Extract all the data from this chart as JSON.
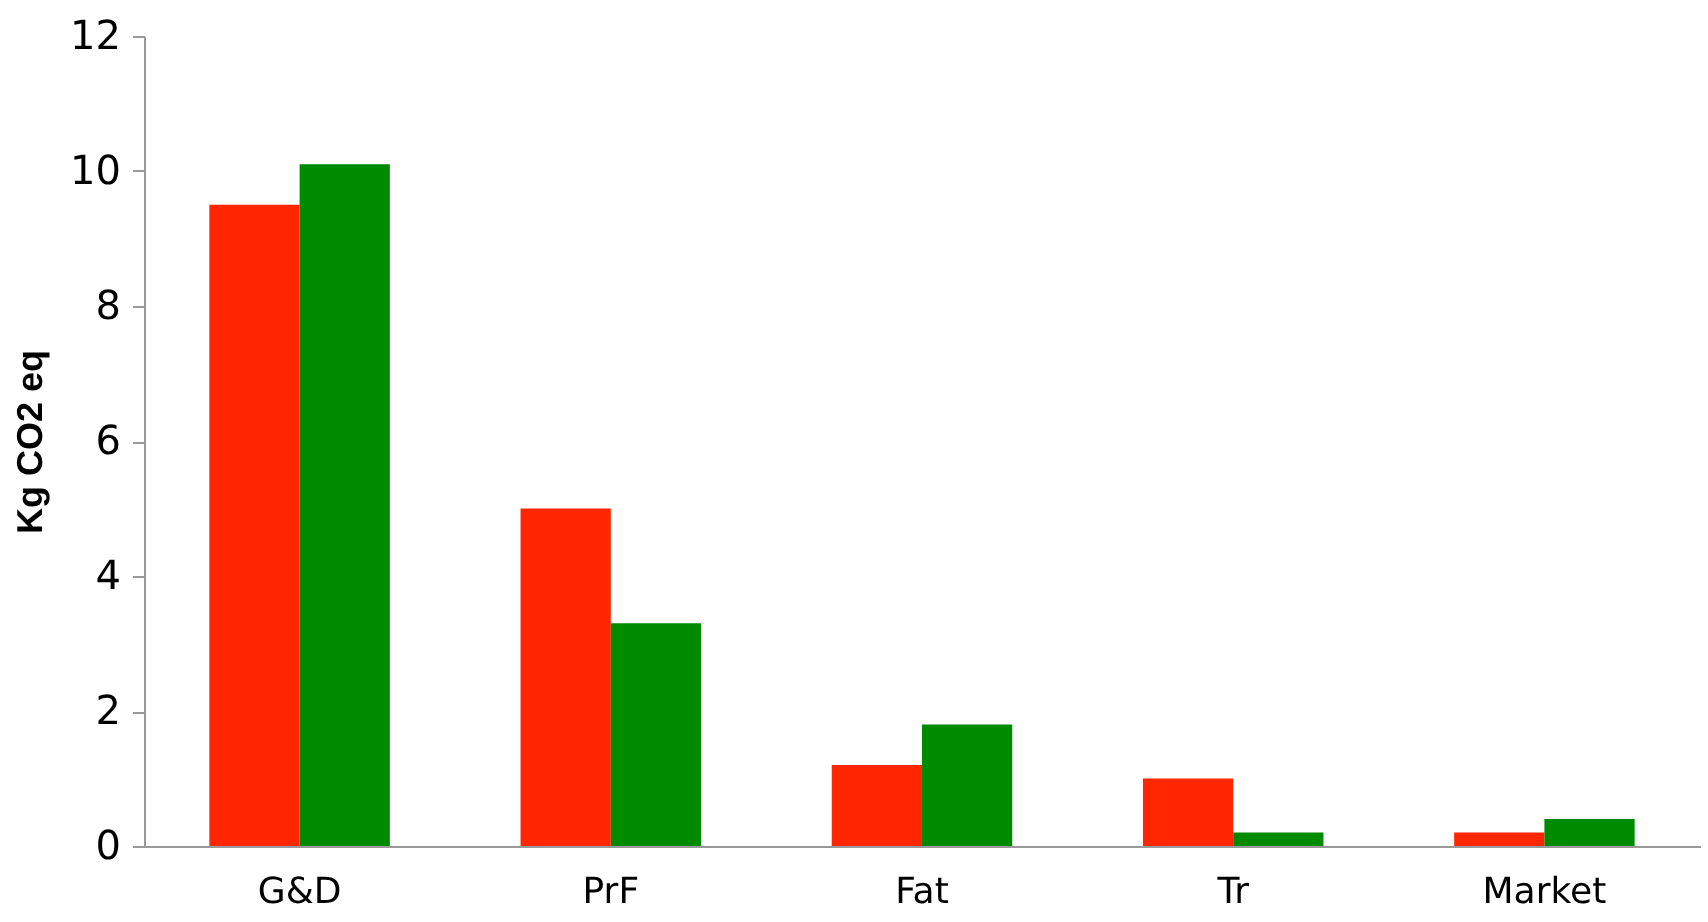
{
  "chart_data": {
    "type": "bar",
    "ylabel": "Kg CO2 eq",
    "categories": [
      "G&D",
      "PrF",
      "Fat",
      "Tr",
      "Market"
    ],
    "series": [
      {
        "color": "#ff2600",
        "values": [
          9.5,
          5.0,
          1.2,
          1.0,
          0.2
        ]
      },
      {
        "color": "#008a00",
        "values": [
          10.1,
          3.3,
          1.8,
          0.2,
          0.4
        ]
      }
    ],
    "ylim": [
      0,
      12
    ],
    "yticks": [
      0,
      2,
      4,
      6,
      8,
      10,
      12
    ]
  }
}
